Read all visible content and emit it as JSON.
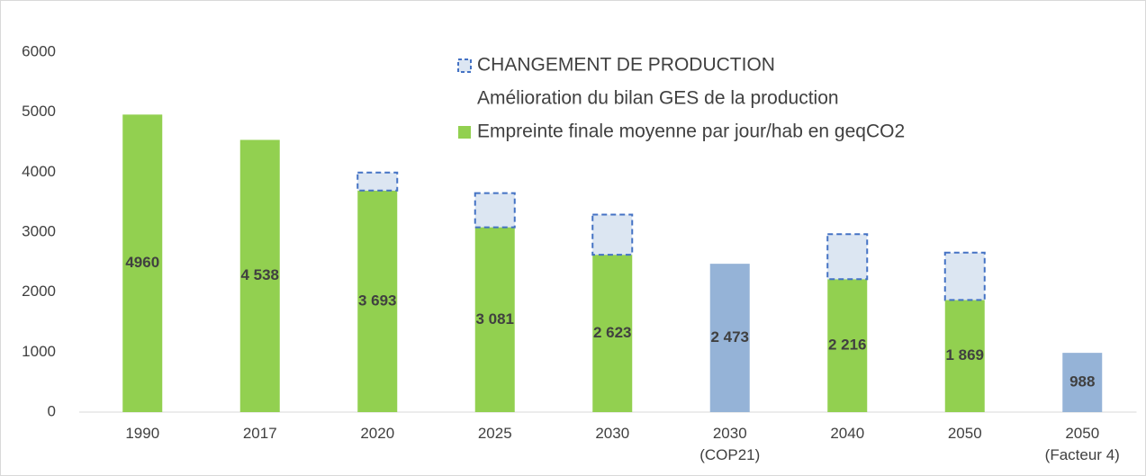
{
  "chart_data": {
    "type": "bar",
    "stacked": true,
    "categories": [
      "1990",
      "2017",
      "2020",
      "2025",
      "2030",
      "2030\n(COP21)",
      "2040",
      "2050",
      "2050\n(Facteur 4)"
    ],
    "series": [
      {
        "name": "Empreinte finale moyenne par jour/hab en geqCO2",
        "color": "#92d050",
        "colors": [
          "#92d050",
          "#92d050",
          "#92d050",
          "#92d050",
          "#92d050",
          "#95b3d7",
          "#92d050",
          "#92d050",
          "#95b3d7"
        ],
        "values": [
          4960,
          4538,
          3693,
          3081,
          2623,
          2473,
          2216,
          1869,
          988
        ],
        "value_labels": [
          "4960",
          "4 538",
          "3 693",
          "3 081",
          "2 623",
          "2 473",
          "2 216",
          "1 869",
          "988"
        ]
      },
      {
        "name": "Amélioration du bilan GES de la production",
        "color": "#ffffff",
        "values": [
          null,
          null,
          null,
          null,
          null,
          null,
          null,
          null,
          null
        ]
      },
      {
        "name": "CHANGEMENT DE PRODUCTION",
        "color": "#dce6f2",
        "edgecolor": "#4472c4",
        "linestyle": "dashed",
        "values": [
          null,
          null,
          300,
          570,
          670,
          null,
          750,
          790,
          null
        ]
      }
    ],
    "ylim": [
      0,
      6000
    ],
    "yticks": [
      0,
      1000,
      2000,
      3000,
      4000,
      5000,
      6000
    ],
    "grid": false
  }
}
